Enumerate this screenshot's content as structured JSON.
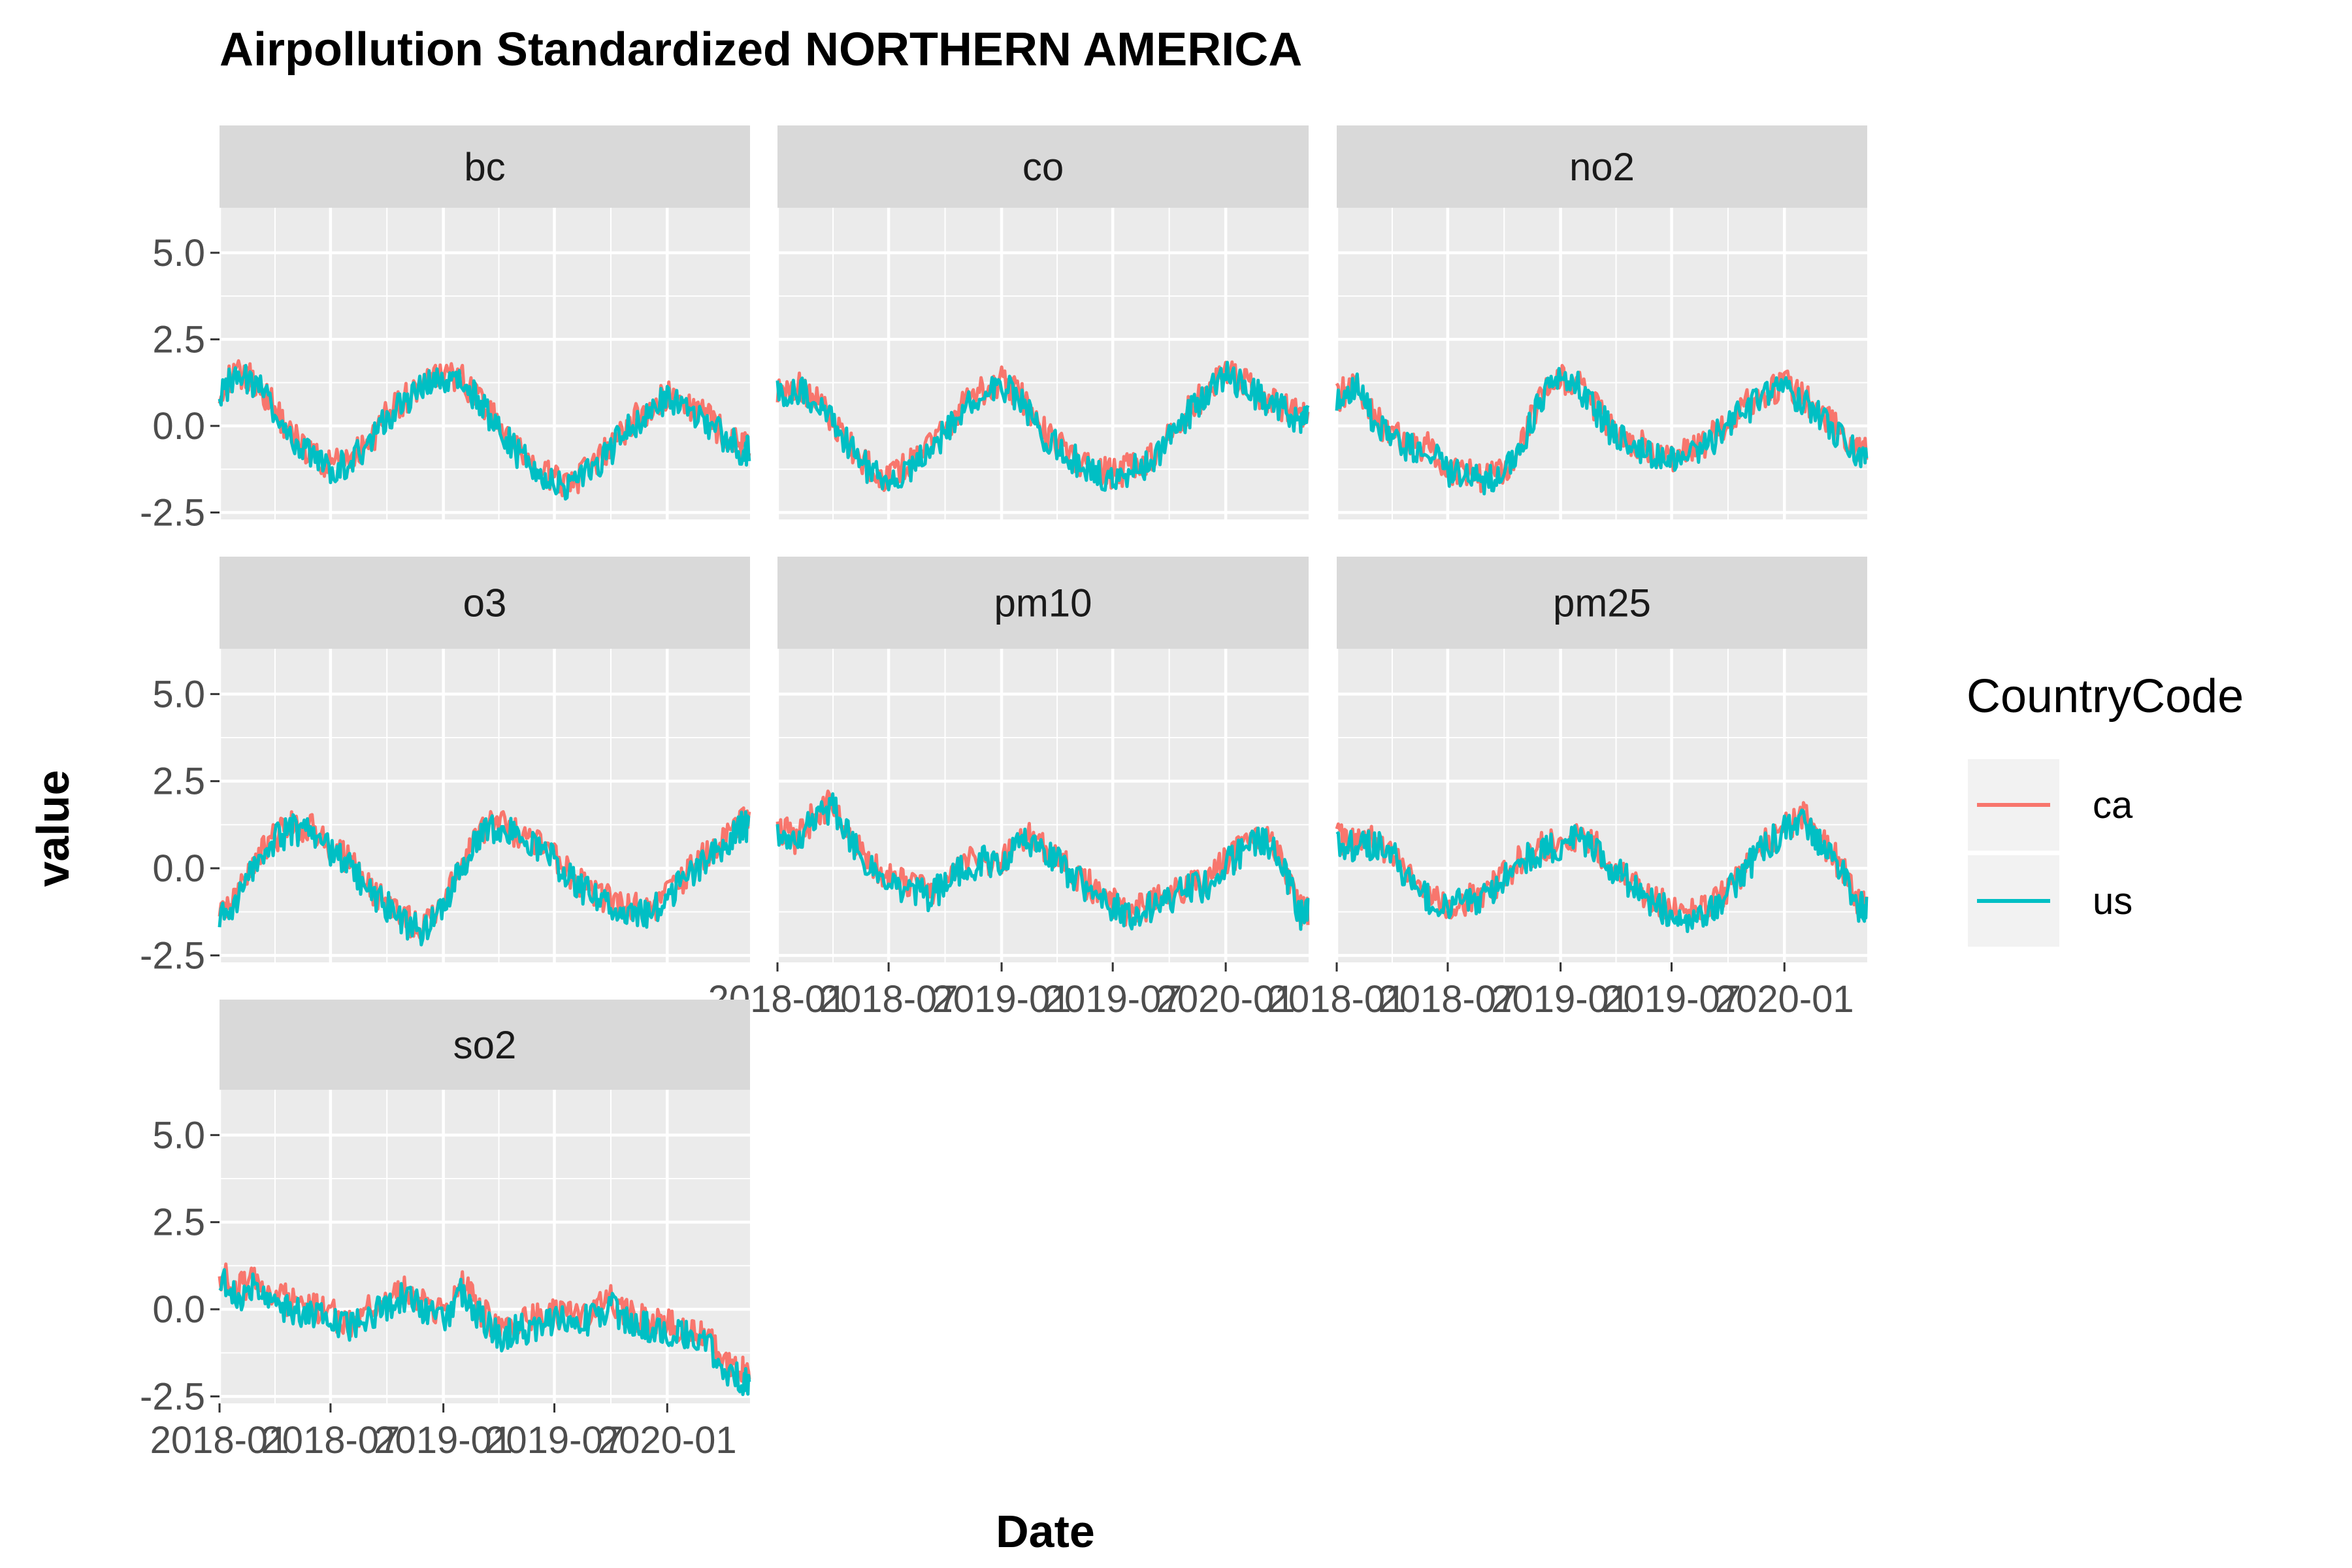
{
  "chart_data": {
    "type": "line",
    "title": "Airpollution Standardized NORTHERN AMERICA",
    "xlabel": "Date",
    "ylabel": "value",
    "x_ticks": [
      "2018-01",
      "2018-07",
      "2019-01",
      "2019-07",
      "2020-01"
    ],
    "x_range": [
      "2018-01-01",
      "2020-05-15"
    ],
    "y_ticks": [
      "5.0",
      "2.5",
      "0.0",
      "-2.5"
    ],
    "ylim": [
      -2.7,
      6.3
    ],
    "grid": true,
    "facets": [
      "bc",
      "co",
      "no2",
      "o3",
      "pm10",
      "pm25",
      "so2"
    ],
    "legend": {
      "title": "CountryCode",
      "position": "right",
      "entries": [
        {
          "name": "ca",
          "color": "#F8766D"
        },
        {
          "name": "us",
          "color": "#00BFC4"
        }
      ]
    },
    "series_x": [
      "2018-01-01",
      "2018-02-01",
      "2018-03-01",
      "2018-04-01",
      "2018-05-01",
      "2018-06-01",
      "2018-07-01",
      "2018-08-01",
      "2018-09-01",
      "2018-10-01",
      "2018-11-01",
      "2018-12-01",
      "2019-01-01",
      "2019-02-01",
      "2019-03-01",
      "2019-04-01",
      "2019-05-01",
      "2019-06-01",
      "2019-07-01",
      "2019-08-01",
      "2019-09-01",
      "2019-10-01",
      "2019-11-01",
      "2019-12-01",
      "2020-01-01",
      "2020-02-01",
      "2020-03-01",
      "2020-04-01",
      "2020-05-01"
    ],
    "panels": [
      {
        "facet": "bc",
        "series": [
          {
            "name": "ca",
            "values": [
              1.1,
              1.5,
              1.3,
              0.5,
              -0.3,
              -0.8,
              -1.2,
              -0.9,
              -0.5,
              0.3,
              0.8,
              1.2,
              1.5,
              1.3,
              0.8,
              0.0,
              -0.7,
              -1.2,
              -1.6,
              -1.6,
              -1.2,
              -0.6,
              0.1,
              0.5,
              0.9,
              0.6,
              0.3,
              -0.2,
              -0.6
            ]
          },
          {
            "name": "us",
            "values": [
              1.0,
              1.4,
              1.2,
              0.4,
              -0.4,
              -0.9,
              -1.3,
              -1.0,
              -0.6,
              0.2,
              0.7,
              1.1,
              1.4,
              1.2,
              0.7,
              -0.1,
              -0.8,
              -1.3,
              -1.7,
              -1.7,
              -1.3,
              -0.7,
              0.0,
              0.4,
              0.8,
              0.5,
              0.2,
              -0.3,
              -0.7
            ]
          }
        ]
      },
      {
        "facet": "co",
        "series": [
          {
            "name": "ca",
            "values": [
              1.0,
              1.2,
              0.8,
              0.2,
              -0.6,
              -1.2,
              -1.5,
              -1.2,
              -0.7,
              -0.1,
              0.6,
              1.0,
              1.3,
              0.9,
              0.0,
              -0.5,
              -0.9,
              -1.3,
              -1.4,
              -1.2,
              -0.9,
              -0.3,
              0.4,
              1.0,
              1.6,
              1.2,
              0.9,
              0.6,
              0.3
            ]
          },
          {
            "name": "us",
            "values": [
              0.9,
              1.1,
              0.7,
              0.1,
              -0.7,
              -1.3,
              -1.6,
              -1.3,
              -0.8,
              -0.2,
              0.5,
              0.9,
              1.2,
              0.8,
              -0.1,
              -0.6,
              -1.0,
              -1.4,
              -1.5,
              -1.3,
              -1.0,
              -0.4,
              0.3,
              0.9,
              1.5,
              1.1,
              0.8,
              0.5,
              0.2
            ]
          }
        ]
      },
      {
        "facet": "no2",
        "series": [
          {
            "name": "ca",
            "values": [
              0.8,
              1.3,
              0.3,
              -0.3,
              -0.5,
              -0.6,
              -1.2,
              -1.4,
              -1.5,
              -1.3,
              -0.4,
              0.9,
              1.4,
              1.2,
              0.5,
              -0.2,
              -0.5,
              -0.7,
              -0.9,
              -0.8,
              -0.4,
              0.2,
              0.6,
              0.9,
              1.2,
              0.8,
              0.3,
              -0.2,
              -0.8
            ]
          },
          {
            "name": "us",
            "values": [
              0.7,
              1.2,
              0.2,
              -0.4,
              -0.6,
              -0.7,
              -1.3,
              -1.5,
              -1.6,
              -1.4,
              -0.5,
              0.8,
              1.3,
              1.1,
              0.4,
              -0.3,
              -0.6,
              -0.8,
              -1.0,
              -0.9,
              -0.5,
              0.1,
              0.5,
              0.8,
              1.1,
              0.7,
              0.2,
              -0.3,
              -0.9
            ]
          }
        ]
      },
      {
        "facet": "o3",
        "series": [
          {
            "name": "ca",
            "values": [
              -1.4,
              -0.8,
              0.2,
              0.9,
              1.2,
              1.1,
              0.6,
              0.2,
              -0.5,
              -1.0,
              -1.5,
              -1.7,
              -1.1,
              0.2,
              1.0,
              1.3,
              1.0,
              0.7,
              0.3,
              -0.3,
              -0.7,
              -0.9,
              -1.1,
              -1.2,
              -0.8,
              -0.2,
              0.3,
              0.8,
              1.3
            ]
          },
          {
            "name": "us",
            "values": [
              -1.5,
              -0.9,
              0.1,
              0.8,
              1.1,
              1.0,
              0.5,
              0.1,
              -0.6,
              -1.1,
              -1.6,
              -1.8,
              -1.2,
              0.1,
              0.9,
              1.2,
              0.9,
              0.6,
              0.2,
              -0.4,
              -0.8,
              -1.0,
              -1.2,
              -1.3,
              -0.9,
              -0.3,
              0.2,
              0.7,
              1.2
            ]
          }
        ]
      },
      {
        "facet": "pm10",
        "series": [
          {
            "name": "ca",
            "values": [
              1.2,
              0.8,
              1.5,
              1.9,
              0.9,
              0.2,
              -0.3,
              -0.5,
              -0.7,
              -0.4,
              0.1,
              0.3,
              0.2,
              0.9,
              0.8,
              0.3,
              -0.2,
              -0.6,
              -1.0,
              -1.3,
              -1.0,
              -0.8,
              -0.5,
              -0.4,
              0.2,
              0.6,
              0.9,
              0.3,
              -1.2
            ]
          },
          {
            "name": "us",
            "values": [
              1.1,
              0.7,
              1.4,
              1.8,
              0.8,
              0.1,
              -0.4,
              -0.6,
              -0.8,
              -0.5,
              0.0,
              0.2,
              0.1,
              0.8,
              0.7,
              0.2,
              -0.3,
              -0.7,
              -1.1,
              -1.4,
              -1.1,
              -0.9,
              -0.6,
              -0.5,
              0.1,
              0.5,
              0.8,
              0.2,
              -1.3
            ]
          }
        ]
      },
      {
        "facet": "pm25",
        "series": [
          {
            "name": "ca",
            "values": [
              0.9,
              0.7,
              0.8,
              0.5,
              -0.3,
              -0.8,
              -1.0,
              -0.9,
              -0.7,
              -0.2,
              0.3,
              0.6,
              0.8,
              1.0,
              0.6,
              0.0,
              -0.4,
              -0.9,
              -1.2,
              -1.3,
              -1.1,
              -0.6,
              0.1,
              0.7,
              1.2,
              1.5,
              0.8,
              0.1,
              -1.0
            ]
          },
          {
            "name": "us",
            "values": [
              0.8,
              0.6,
              0.7,
              0.4,
              -0.4,
              -0.9,
              -1.1,
              -1.0,
              -0.8,
              -0.3,
              0.2,
              0.5,
              0.7,
              0.9,
              0.5,
              -0.1,
              -0.5,
              -1.0,
              -1.3,
              -1.4,
              -1.2,
              -0.7,
              0.0,
              0.6,
              1.1,
              1.4,
              0.7,
              0.0,
              -1.1
            ]
          }
        ]
      },
      {
        "facet": "so2",
        "series": [
          {
            "name": "ca",
            "values": [
              1.0,
              0.6,
              0.8,
              0.4,
              0.2,
              0.0,
              -0.1,
              -0.5,
              0.1,
              0.2,
              0.5,
              0.2,
              -0.2,
              0.7,
              0.0,
              -0.6,
              -0.4,
              -0.3,
              -0.1,
              -0.2,
              -0.1,
              0.3,
              -0.2,
              -0.3,
              -0.4,
              -0.5,
              -0.7,
              -1.5,
              -1.8
            ]
          },
          {
            "name": "us",
            "values": [
              0.8,
              0.4,
              0.6,
              0.2,
              0.0,
              -0.2,
              -0.3,
              -0.6,
              -0.1,
              0.0,
              0.4,
              0.0,
              -0.4,
              0.5,
              -0.2,
              -0.8,
              -0.6,
              -0.5,
              -0.3,
              -0.4,
              -0.3,
              0.1,
              -0.4,
              -0.5,
              -0.6,
              -0.7,
              -0.9,
              -1.7,
              -2.0
            ]
          }
        ]
      }
    ]
  }
}
